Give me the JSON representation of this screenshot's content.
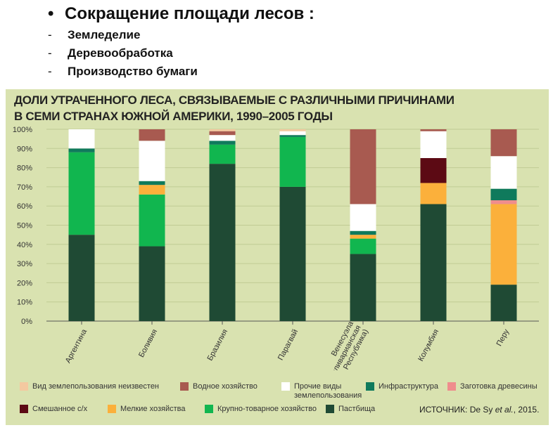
{
  "slide": {
    "bullet": "•",
    "title": "Сокращение площади лесов :",
    "dash": "-",
    "items": [
      "Земледелие",
      "Деревообработка",
      "Производство бумаги"
    ]
  },
  "chart_data": {
    "type": "stacked-bar",
    "title_line1": "ДОЛИ УТРАЧЕННОГО ЛЕСА, СВЯЗЫВАЕМЫЕ С РАЗЛИЧНЫМИ ПРИЧИНАМИ",
    "title_line2": "В СЕМИ  СТРАНАХ ЮЖНОЙ АМЕРИКИ, 1990–2005 ГОДЫ",
    "xlabel": "",
    "ylabel": "",
    "ylim": [
      0,
      100
    ],
    "yticks": [
      "0%",
      "10%",
      "20%",
      "30%",
      "40%",
      "50%",
      "60%",
      "70%",
      "80%",
      "90%",
      "100%"
    ],
    "categories": [
      "Аргентина",
      "Боливия",
      "Бразилия",
      "Парагвай",
      "Венесуэла (Боливарианская Республика)",
      "Колумбия",
      "Перу"
    ],
    "series": [
      {
        "name": "Пастбища",
        "color": "#1f4a34",
        "values": [
          45,
          39,
          82,
          70,
          35,
          61,
          19
        ]
      },
      {
        "name": "Крупно-товарное хозяйство",
        "color": "#11b64f",
        "values": [
          43,
          27,
          10,
          26,
          8,
          0,
          0
        ]
      },
      {
        "name": "Мелкие хозяйства",
        "color": "#fbb03b",
        "values": [
          0,
          5,
          0,
          0,
          2,
          11,
          42
        ]
      },
      {
        "name": "Смешанное с/х",
        "color": "#5c0a14",
        "values": [
          0,
          0,
          0,
          0,
          0,
          13,
          0
        ]
      },
      {
        "name": "Заготовка древесины",
        "color": "#ef8d8d",
        "values": [
          0,
          0,
          0,
          0,
          0,
          0,
          2
        ]
      },
      {
        "name": "Инфраструктура",
        "color": "#0f7a5c",
        "values": [
          2,
          2,
          2,
          1,
          2,
          0,
          6
        ]
      },
      {
        "name": "Прочие виды землепользования",
        "color": "#ffffff",
        "values": [
          10,
          21,
          3,
          2,
          14,
          14,
          17
        ]
      },
      {
        "name": "Водное хозяйство",
        "color": "#a85a50",
        "values": [
          0,
          6,
          2,
          0,
          39,
          1,
          14
        ]
      },
      {
        "name": "Вид землепользования неизвестен",
        "color": "#f4c9a0",
        "values": [
          0,
          0,
          1,
          1,
          0,
          0,
          0
        ]
      }
    ],
    "legend_rows": [
      [
        "Вид землепользования неизвестен",
        "Водное хозяйство",
        "Прочие виды землепользования",
        "Инфраструктура",
        "Заготовка древесины"
      ],
      [
        "Смешанное с/х",
        "Мелкие хозяйства",
        "Крупно-товарное хозяйство",
        "Пастбища"
      ]
    ],
    "source_label": "ИСТОЧНИК: De Sy ",
    "source_italic": "et al.",
    "source_year": ", 2015.",
    "grid": true,
    "legend_position": "bottom"
  }
}
